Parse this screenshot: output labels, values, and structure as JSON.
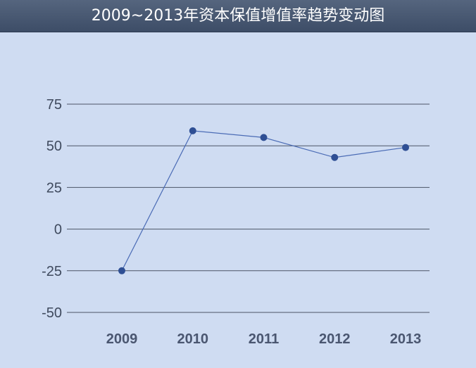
{
  "chart_data": {
    "type": "line",
    "title": "2009~2013年资本保值增值率趋势变动图",
    "xlabel": "",
    "ylabel": "",
    "categories": [
      "2009",
      "2010",
      "2011",
      "2012",
      "2013"
    ],
    "series": [
      {
        "values": [
          -25,
          59,
          55,
          43,
          49
        ]
      }
    ],
    "yticks": [
      "75",
      "50",
      "25",
      "0",
      "-25",
      "-50"
    ],
    "ylim": [
      -50,
      75
    ],
    "grid": true,
    "legend": "none",
    "colors": {
      "line": "#4a6bb5",
      "marker": "#2f4f94",
      "grid": "#4c5566",
      "background": "#cfdcf2",
      "title_bar": "#45556f"
    }
  }
}
